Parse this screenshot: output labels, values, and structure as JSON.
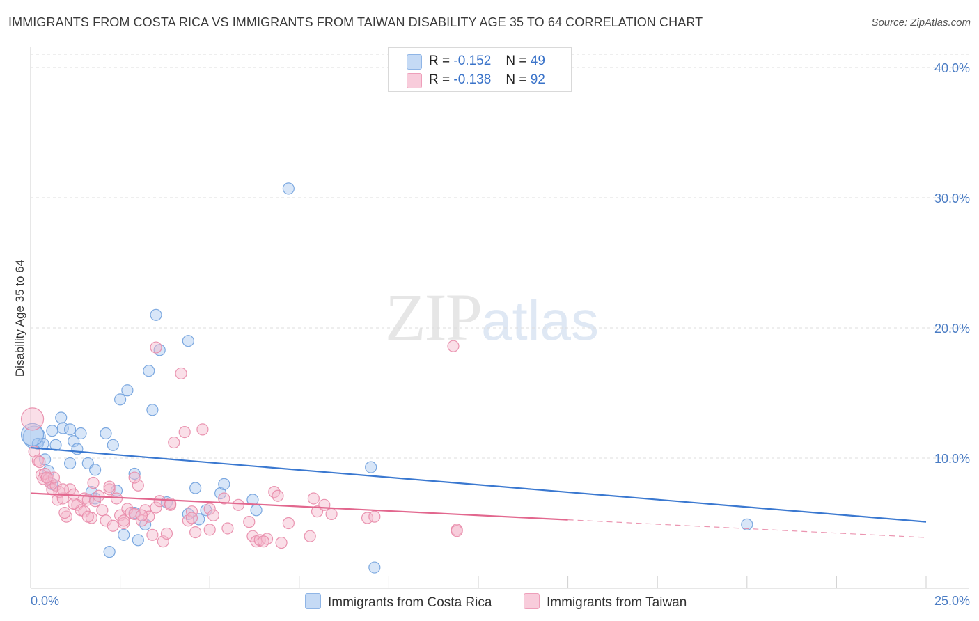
{
  "title": "IMMIGRANTS FROM COSTA RICA VS IMMIGRANTS FROM TAIWAN DISABILITY AGE 35 TO 64 CORRELATION CHART",
  "source": "Source: ZipAtlas.com",
  "watermark": {
    "part1": "ZIP",
    "part2": "atlas"
  },
  "legend": {
    "rows": [
      {
        "r_label": "R =",
        "r_value": "-0.152",
        "n_label": "N =",
        "n_value": "49",
        "color": "#a9c8f0"
      },
      {
        "r_label": "R =",
        "r_value": "-0.138",
        "n_label": "N =",
        "n_value": "92",
        "color": "#f5b8cc"
      }
    ]
  },
  "bottom_legend": [
    {
      "label": "Immigrants from Costa Rica",
      "color": "#a9c8f0"
    },
    {
      "label": "Immigrants from Taiwan",
      "color": "#f5b8cc"
    }
  ],
  "chart_data": {
    "type": "scatter",
    "title": "IMMIGRANTS FROM COSTA RICA VS IMMIGRANTS FROM TAIWAN DISABILITY AGE 35 TO 64 CORRELATION CHART",
    "xlabel": "",
    "ylabel": "Disability Age 35 to 64",
    "xlim": [
      0,
      25
    ],
    "ylim": [
      0,
      40
    ],
    "x_tick_labels": [
      "0.0%",
      "25.0%"
    ],
    "y_ticks": [
      10,
      20,
      30,
      40
    ],
    "y_tick_labels": [
      "10.0%",
      "20.0%",
      "30.0%",
      "40.0%"
    ],
    "series": [
      {
        "name": "Immigrants from Costa Rica",
        "color": "#6fa0dd",
        "fill": "#a9c8f0",
        "trend": {
          "x0": 0,
          "y0": 10.8,
          "x1": 25,
          "y1": 5.1,
          "solid_to": 25,
          "color": "#3a78d0"
        },
        "points": [
          [
            0.1,
            11.6
          ],
          [
            0.2,
            11.1
          ],
          [
            0.35,
            11.1
          ],
          [
            0.4,
            9.9
          ],
          [
            0.5,
            9.0
          ],
          [
            0.6,
            12.1
          ],
          [
            0.7,
            11.0
          ],
          [
            0.85,
            13.1
          ],
          [
            0.9,
            12.3
          ],
          [
            1.1,
            12.2
          ],
          [
            1.2,
            11.3
          ],
          [
            1.3,
            10.7
          ],
          [
            1.4,
            11.9
          ],
          [
            1.6,
            9.6
          ],
          [
            1.1,
            9.6
          ],
          [
            0.6,
            8.0
          ],
          [
            1.7,
            7.4
          ],
          [
            1.8,
            6.9
          ],
          [
            1.8,
            9.1
          ],
          [
            2.1,
            11.9
          ],
          [
            2.3,
            11.0
          ],
          [
            2.4,
            7.5
          ],
          [
            2.5,
            14.5
          ],
          [
            2.7,
            15.2
          ],
          [
            2.9,
            8.8
          ],
          [
            3.3,
            16.7
          ],
          [
            3.4,
            13.7
          ],
          [
            3.5,
            21.0
          ],
          [
            3.6,
            18.3
          ],
          [
            4.4,
            19.0
          ],
          [
            3.8,
            6.6
          ],
          [
            4.4,
            5.7
          ],
          [
            4.7,
            5.3
          ],
          [
            4.6,
            7.7
          ],
          [
            4.9,
            6.0
          ],
          [
            5.3,
            7.3
          ],
          [
            5.4,
            8.0
          ],
          [
            6.2,
            6.8
          ],
          [
            6.3,
            6.0
          ],
          [
            2.9,
            5.8
          ],
          [
            3.2,
            4.9
          ],
          [
            2.6,
            4.1
          ],
          [
            3.0,
            3.7
          ],
          [
            2.2,
            2.8
          ],
          [
            7.2,
            30.7
          ],
          [
            9.5,
            9.3
          ],
          [
            9.6,
            1.6
          ],
          [
            20.0,
            4.9
          ],
          [
            0.05,
            11.8
          ]
        ]
      },
      {
        "name": "Immigrants from Taiwan",
        "color": "#e889a9",
        "fill": "#f5b8cc",
        "trend": {
          "x0": 0,
          "y0": 7.3,
          "x1": 25,
          "y1": 3.9,
          "solid_to": 15,
          "color": "#e2678e"
        },
        "points": [
          [
            0.05,
            13.0
          ],
          [
            0.1,
            10.5
          ],
          [
            0.2,
            9.8
          ],
          [
            0.3,
            8.7
          ],
          [
            0.35,
            8.4
          ],
          [
            0.4,
            8.8
          ],
          [
            0.5,
            8.4
          ],
          [
            0.55,
            8.1
          ],
          [
            0.6,
            7.6
          ],
          [
            0.7,
            7.9
          ],
          [
            0.75,
            6.8
          ],
          [
            0.8,
            7.4
          ],
          [
            0.9,
            6.9
          ],
          [
            1.0,
            5.5
          ],
          [
            1.1,
            7.6
          ],
          [
            1.2,
            7.2
          ],
          [
            1.3,
            6.4
          ],
          [
            1.4,
            6.0
          ],
          [
            1.5,
            6.9
          ],
          [
            1.5,
            5.9
          ],
          [
            1.6,
            6.8
          ],
          [
            1.7,
            5.4
          ],
          [
            1.8,
            6.7
          ],
          [
            1.9,
            7.1
          ],
          [
            2.0,
            6.0
          ],
          [
            2.1,
            5.2
          ],
          [
            2.2,
            7.6
          ],
          [
            2.3,
            4.8
          ],
          [
            2.4,
            6.9
          ],
          [
            2.5,
            5.6
          ],
          [
            2.6,
            5.0
          ],
          [
            2.7,
            6.1
          ],
          [
            2.8,
            5.8
          ],
          [
            2.9,
            5.7
          ],
          [
            3.0,
            7.9
          ],
          [
            3.1,
            5.2
          ],
          [
            3.2,
            6.0
          ],
          [
            3.3,
            5.5
          ],
          [
            3.4,
            4.1
          ],
          [
            3.5,
            6.2
          ],
          [
            3.6,
            6.7
          ],
          [
            3.7,
            3.6
          ],
          [
            3.8,
            4.2
          ],
          [
            3.9,
            6.4
          ],
          [
            4.0,
            11.2
          ],
          [
            4.2,
            16.5
          ],
          [
            4.3,
            12.0
          ],
          [
            4.4,
            5.2
          ],
          [
            4.5,
            5.9
          ],
          [
            4.6,
            4.3
          ],
          [
            4.8,
            12.2
          ],
          [
            5.0,
            6.1
          ],
          [
            5.1,
            5.6
          ],
          [
            5.4,
            6.9
          ],
          [
            5.5,
            4.6
          ],
          [
            5.8,
            6.4
          ],
          [
            6.1,
            5.1
          ],
          [
            6.2,
            4.0
          ],
          [
            6.3,
            3.6
          ],
          [
            6.4,
            3.7
          ],
          [
            6.6,
            3.8
          ],
          [
            6.8,
            7.4
          ],
          [
            6.9,
            7.1
          ],
          [
            7.0,
            3.5
          ],
          [
            7.2,
            5.0
          ],
          [
            7.9,
            6.9
          ],
          [
            8.0,
            5.9
          ],
          [
            8.2,
            6.4
          ],
          [
            8.4,
            5.7
          ],
          [
            9.4,
            5.4
          ],
          [
            9.6,
            5.5
          ],
          [
            11.9,
            4.5
          ],
          [
            11.9,
            4.4
          ],
          [
            11.8,
            18.6
          ],
          [
            3.5,
            18.5
          ],
          [
            2.2,
            7.8
          ],
          [
            0.9,
            7.6
          ],
          [
            1.2,
            6.5
          ],
          [
            0.65,
            8.5
          ],
          [
            2.9,
            8.5
          ],
          [
            3.9,
            6.5
          ],
          [
            1.6,
            5.5
          ],
          [
            2.6,
            5.2
          ],
          [
            3.1,
            5.6
          ],
          [
            4.5,
            5.4
          ],
          [
            5.0,
            4.5
          ],
          [
            6.5,
            3.6
          ],
          [
            7.8,
            4.0
          ],
          [
            0.25,
            9.7
          ],
          [
            0.45,
            8.5
          ],
          [
            0.95,
            5.8
          ],
          [
            1.75,
            8.1
          ]
        ]
      }
    ]
  }
}
